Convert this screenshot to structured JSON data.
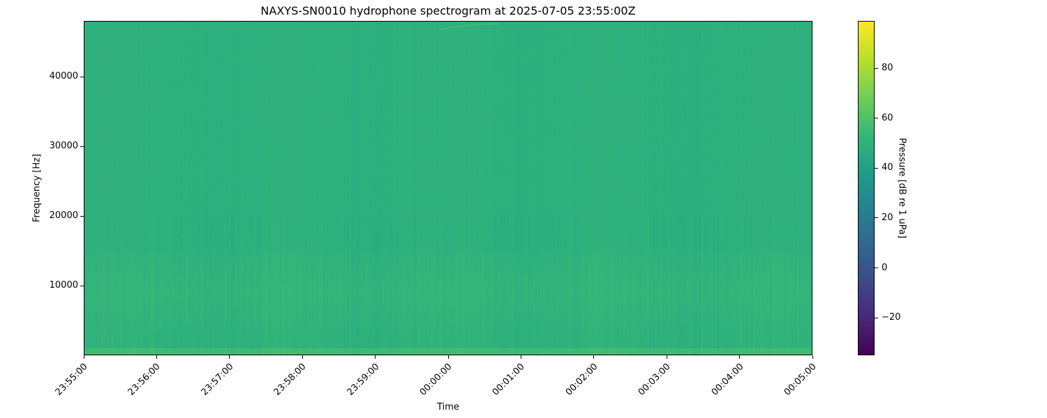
{
  "chart_data": {
    "type": "heatmap",
    "title": "NAXYS-SN0010 hydrophone spectrogram at 2025-07-05 23:55:00Z",
    "xlabel": "Time",
    "ylabel": "Frequency [Hz]",
    "xlim": [
      "23:55:00",
      "00:05:00"
    ],
    "xticks": [
      "23:55:00",
      "23:56:00",
      "23:57:00",
      "23:58:00",
      "23:59:00",
      "00:00:00",
      "00:01:00",
      "00:02:00",
      "00:03:00",
      "00:04:00",
      "00:05:00"
    ],
    "ylim": [
      0,
      48000
    ],
    "yticks": [
      10000,
      20000,
      30000,
      40000
    ],
    "ytick_labels": [
      "10000",
      "20000",
      "30000",
      "40000"
    ],
    "colormap": "viridis",
    "colorbar": {
      "label": "Pressure [dB re 1 uPa]",
      "range": [
        -35,
        99
      ],
      "ticks": [
        -20,
        0,
        20,
        40,
        60,
        80
      ],
      "tick_labels": [
        "−20",
        "0",
        "20",
        "40",
        "60",
        "80"
      ]
    },
    "background_level_db": 50,
    "low_frequency_band": {
      "freq_range_hz": [
        0,
        1000
      ],
      "level_db": 57
    },
    "mid_band_5k_15k_level_db": 53,
    "grid": false
  }
}
